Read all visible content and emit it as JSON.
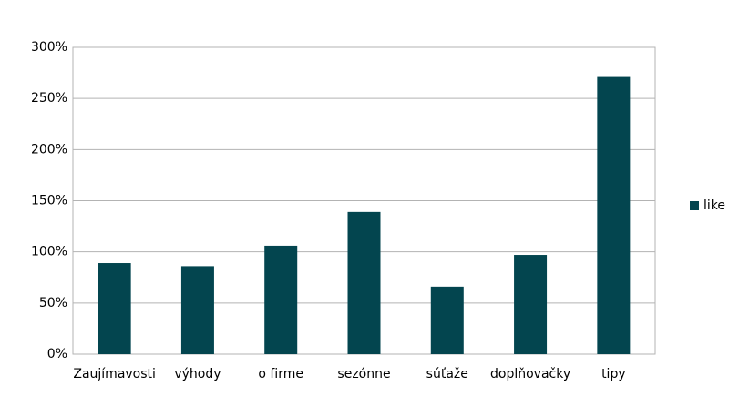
{
  "chart_data": {
    "type": "bar",
    "categories": [
      "Zaujímavosti",
      "výhody",
      "o firme",
      "sezónne",
      "súťaže",
      "doplňovačky",
      "tipy"
    ],
    "series": [
      {
        "name": "like",
        "color": "#03454f",
        "values": [
          89,
          86,
          106,
          139,
          66,
          97,
          271
        ]
      }
    ],
    "ylim": [
      0,
      300
    ],
    "yticks": [
      {
        "value": 0,
        "label": "0%"
      },
      {
        "value": 50,
        "label": "50%"
      },
      {
        "value": 100,
        "label": "100%"
      },
      {
        "value": 150,
        "label": "150%"
      },
      {
        "value": 200,
        "label": "200%"
      },
      {
        "value": 250,
        "label": "250%"
      },
      {
        "value": 300,
        "label": "300%"
      }
    ],
    "grid": true,
    "legend": "right"
  }
}
